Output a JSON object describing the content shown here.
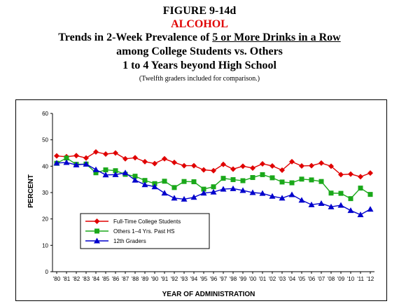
{
  "figure_label": "FIGURE 9-14d",
  "substance": "ALCOHOL",
  "title_prefix": "Trends in 2-Week Prevalence of ",
  "title_underlined": "5 or More Drinks in a Row",
  "title_line2": "among College Students vs. Others",
  "title_line3": "1 to 4 Years beyond High School",
  "note": "(Twelfth graders included for comparison.)",
  "colors": {
    "college": "#e00000",
    "others": "#1aa81a",
    "grade12": "#0000cc"
  },
  "chart_data": {
    "type": "line",
    "xlabel": "YEAR OF ADMINISTRATION",
    "ylabel": "PERCENT",
    "ylim": [
      0,
      60
    ],
    "yticks": [
      0,
      10,
      20,
      30,
      40,
      50,
      60
    ],
    "grid": false,
    "legend_position": "bottom-left",
    "categories": [
      "'80",
      "'81",
      "'82",
      "'83",
      "'84",
      "'85",
      "'86",
      "'87",
      "'88",
      "'89",
      "'90",
      "'91",
      "'92",
      "'93",
      "'94",
      "'95",
      "'96",
      "'97",
      "'98",
      "'99",
      "'00",
      "'01",
      "'02",
      "'03",
      "'04",
      "'05",
      "'06",
      "'07",
      "'08",
      "'09",
      "'10",
      "'11",
      "'12"
    ],
    "series": [
      {
        "name": "Full-Time College Students",
        "color": "#e00000",
        "marker": "diamond",
        "values": [
          43.9,
          43.6,
          44.0,
          43.1,
          45.4,
          44.6,
          45.0,
          42.8,
          43.2,
          41.7,
          41.0,
          42.8,
          41.4,
          40.2,
          40.2,
          38.6,
          38.3,
          40.7,
          38.9,
          40.0,
          39.3,
          40.9,
          40.1,
          38.5,
          41.7,
          40.1,
          40.2,
          41.2,
          40.0,
          36.8,
          37.0,
          36.0,
          37.4
        ]
      },
      {
        "name": "Others 1–4 Yrs. Past HS",
        "color": "#1aa81a",
        "marker": "square",
        "values": [
          41.1,
          43.1,
          40.7,
          40.8,
          37.5,
          38.6,
          38.3,
          36.9,
          36.2,
          34.6,
          33.4,
          34.3,
          31.9,
          34.2,
          34.1,
          31.3,
          32.2,
          35.4,
          34.9,
          34.5,
          35.7,
          36.8,
          35.6,
          34.0,
          33.7,
          35.1,
          34.8,
          34.2,
          29.8,
          29.7,
          27.7,
          31.7,
          29.3
        ]
      },
      {
        "name": "12th Graders",
        "color": "#0000cc",
        "marker": "triangle",
        "values": [
          41.2,
          41.4,
          40.5,
          40.8,
          38.7,
          36.7,
          36.8,
          37.5,
          34.7,
          33.0,
          32.2,
          29.8,
          27.9,
          27.5,
          28.2,
          29.8,
          30.2,
          31.3,
          31.5,
          30.8,
          30.0,
          29.7,
          28.6,
          27.9,
          29.2,
          27.1,
          25.4,
          25.9,
          24.6,
          25.2,
          23.2,
          21.6,
          23.7
        ]
      }
    ]
  }
}
